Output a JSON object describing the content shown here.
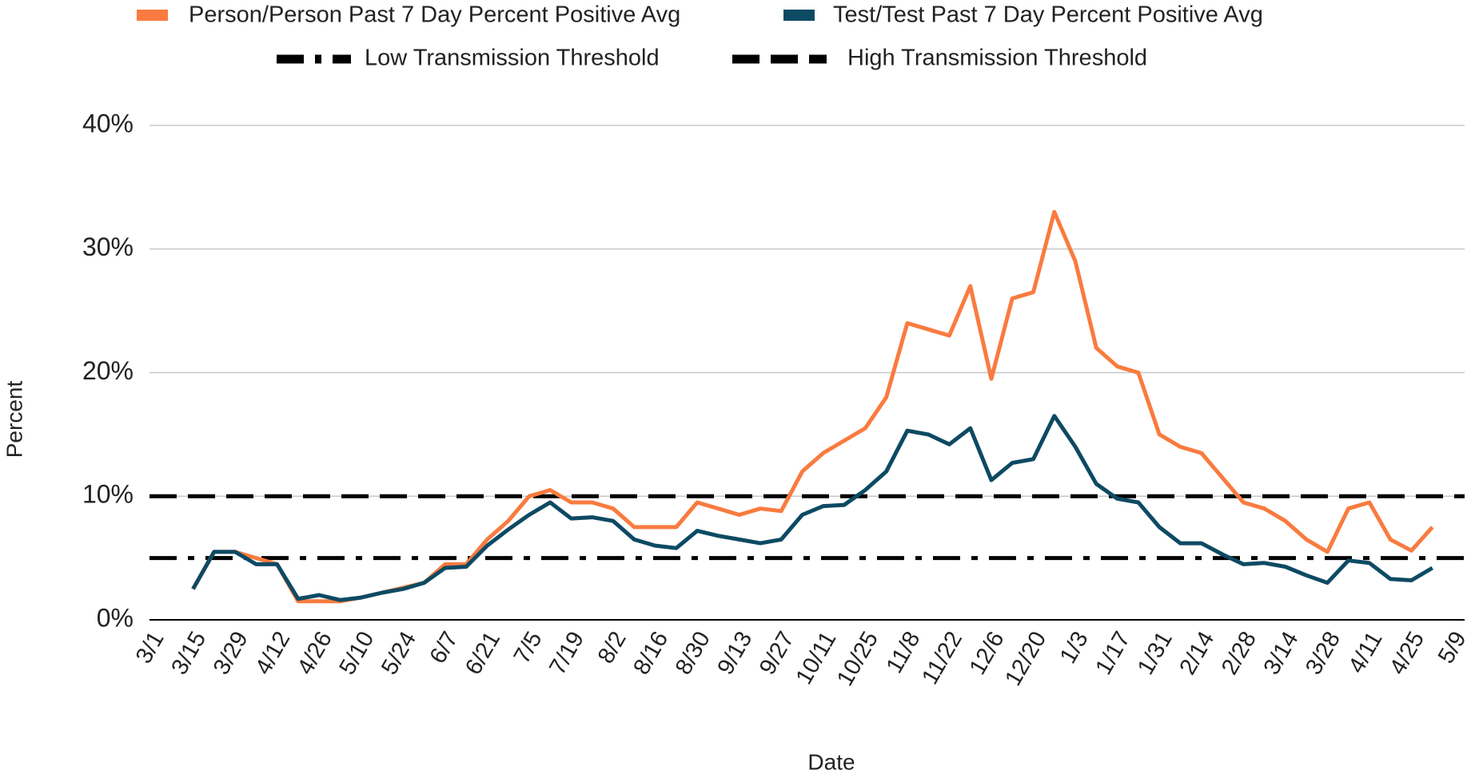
{
  "chart_data": {
    "type": "line",
    "x_label": "Date",
    "y_label": "Percent",
    "categories": [
      "3/1",
      null,
      "3/15",
      null,
      "3/29",
      null,
      "4/12",
      null,
      "4/26",
      null,
      "5/10",
      null,
      "5/24",
      null,
      "6/7",
      null,
      "6/21",
      null,
      "7/5",
      null,
      "7/19",
      null,
      "8/2",
      null,
      "8/16",
      null,
      "8/30",
      null,
      "9/13",
      null,
      "9/27",
      null,
      "10/11",
      null,
      "10/25",
      null,
      "11/8",
      null,
      "11/22",
      null,
      "12/6",
      null,
      "12/20",
      null,
      "1/3",
      null,
      "1/17",
      null,
      "1/31",
      null,
      "2/14",
      null,
      "2/28",
      null,
      "3/14",
      null,
      "3/28",
      null,
      "4/11",
      null,
      "4/25",
      null,
      "5/9"
    ],
    "series": [
      {
        "name": "Person/Person Past 7 Day Percent Positive Avg",
        "color": "#f97b3f",
        "values": [
          null,
          null,
          2.5,
          5.5,
          5.5,
          5,
          4.5,
          1.5,
          1.5,
          1.5,
          1.8,
          2.2,
          2.6,
          3,
          4.5,
          4.5,
          6.5,
          8,
          10,
          10.5,
          9.5,
          9.5,
          9,
          7.5,
          7.5,
          7.5,
          9.5,
          9,
          8.5,
          9,
          8.8,
          12,
          13.5,
          14.5,
          15.5,
          18,
          24,
          23.5,
          23,
          27,
          19.5,
          26,
          26.5,
          33,
          29,
          22,
          20.5,
          20,
          15,
          14,
          13.5,
          11.5,
          9.5,
          9,
          8,
          6.5,
          5.5,
          9,
          9.5,
          6.5,
          5.6,
          7.5,
          null
        ]
      },
      {
        "name": "Test/Test Past 7 Day Percent Positive Avg",
        "color": "#0d4a63",
        "values": [
          null,
          null,
          2.5,
          5.5,
          5.5,
          4.5,
          4.5,
          1.7,
          2,
          1.6,
          1.8,
          2.2,
          2.5,
          3,
          4.2,
          4.3,
          6,
          7.3,
          8.5,
          9.5,
          8.2,
          8.3,
          8,
          6.5,
          6,
          5.8,
          7.2,
          6.8,
          6.5,
          6.2,
          6.5,
          8.5,
          9.2,
          9.3,
          10.5,
          12,
          15.3,
          15,
          14.2,
          15.5,
          11.3,
          12.7,
          13,
          16.5,
          14,
          11,
          9.8,
          9.5,
          7.5,
          6.2,
          6.2,
          5.3,
          4.5,
          4.6,
          4.3,
          3.6,
          3,
          4.8,
          4.6,
          3.3,
          3.2,
          4.2,
          null
        ]
      }
    ],
    "thresholds": [
      {
        "name": "Low Transmission Threshold",
        "value": 5,
        "linestyle": "dashdot",
        "color": "#000000"
      },
      {
        "name": "High Transmission Threshold",
        "value": 10,
        "linestyle": "dashed",
        "color": "#000000"
      }
    ],
    "ylim": [
      0,
      40
    ],
    "yticks": [
      {
        "value": 0,
        "label": "0%"
      },
      {
        "value": 10,
        "label": "10%"
      },
      {
        "value": 20,
        "label": "20%"
      },
      {
        "value": 30,
        "label": "30%"
      },
      {
        "value": 40,
        "label": "40%"
      }
    ],
    "grid": true
  }
}
